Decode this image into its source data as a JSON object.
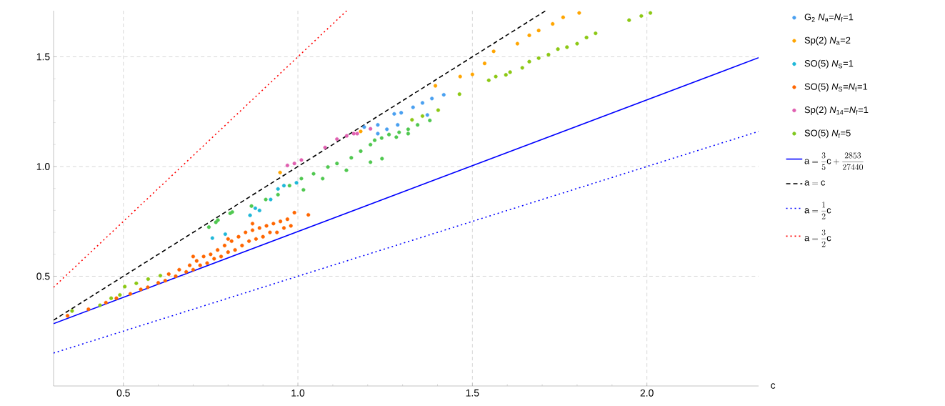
{
  "chart_data": {
    "type": "scatter",
    "xlabel": "c",
    "xlim": [
      0.3,
      2.32
    ],
    "ylim": [
      0,
      1.71
    ],
    "xticks": [
      0.5,
      {
        "value": 1,
        "label": "1.0"
      },
      1.5,
      {
        "value": 2,
        "label": "2.0"
      }
    ],
    "yticks": [
      0.5,
      {
        "value": 1,
        "label": "1.0"
      },
      1.5
    ],
    "grid": true,
    "legend": "right",
    "series": [
      {
        "name": "G$_{2}$ *N*$_{a}$=*N*$_{f}$=1",
        "marker": "circle",
        "color": "#4aa0f0",
        "x": [
          1.418,
          1.384,
          1.357,
          1.33,
          1.296,
          1.276,
          1.255,
          1.229,
          1.229,
          1.371,
          1.286,
          1.19
        ],
        "values": [
          1.327,
          1.31,
          1.29,
          1.27,
          1.245,
          1.24,
          1.17,
          1.19,
          1.15,
          1.235,
          1.19,
          1.18
        ]
      },
      {
        "name": "Sp(2) *N*$_{a}$=2",
        "marker": "circle",
        "color": "#ffa500",
        "x": [
          1.561,
          1.629,
          1.663,
          1.69,
          1.73,
          1.76,
          1.806,
          1.535,
          1.5,
          1.465,
          1.394,
          0.949,
          1.18
        ],
        "values": [
          1.525,
          1.56,
          1.598,
          1.62,
          1.65,
          1.68,
          1.7,
          1.47,
          1.42,
          1.41,
          1.368,
          0.973,
          1.16
        ]
      },
      {
        "name": "SO(5) *N*$_{S}$=1",
        "marker": "circle",
        "color": "#20b8d8",
        "x": [
          0.96,
          0.943,
          0.996,
          0.922,
          0.878,
          0.863,
          0.792,
          0.89,
          0.755
        ],
        "values": [
          0.913,
          0.898,
          0.926,
          0.85,
          0.81,
          0.778,
          0.692,
          0.8,
          0.674
        ]
      },
      {
        "name": "SO(5) *N*$_{S}$=*N*$_{f}$=1",
        "marker": "circle",
        "color": "#ff6600",
        "x": [
          0.34,
          0.4,
          0.45,
          0.48,
          0.52,
          0.55,
          0.57,
          0.6,
          0.62,
          0.63,
          0.65,
          0.66,
          0.68,
          0.69,
          0.7,
          0.71,
          0.72,
          0.73,
          0.74,
          0.75,
          0.76,
          0.77,
          0.78,
          0.79,
          0.8,
          0.81,
          0.82,
          0.83,
          0.84,
          0.85,
          0.86,
          0.87,
          0.88,
          0.89,
          0.9,
          0.91,
          0.92,
          0.93,
          0.94,
          0.95,
          0.96,
          0.97,
          0.98,
          0.99,
          1.03,
          0.87,
          0.8,
          0.7
        ],
        "values": [
          0.32,
          0.35,
          0.38,
          0.4,
          0.42,
          0.44,
          0.45,
          0.47,
          0.48,
          0.51,
          0.5,
          0.53,
          0.52,
          0.55,
          0.53,
          0.57,
          0.55,
          0.59,
          0.56,
          0.6,
          0.58,
          0.62,
          0.59,
          0.64,
          0.61,
          0.66,
          0.62,
          0.68,
          0.64,
          0.7,
          0.66,
          0.71,
          0.67,
          0.72,
          0.68,
          0.73,
          0.7,
          0.74,
          0.7,
          0.75,
          0.72,
          0.76,
          0.73,
          0.79,
          0.78,
          0.74,
          0.67,
          0.59
        ]
      },
      {
        "name": "Sp(2) *N*$_{14}$=*N*$_{f}$=1",
        "marker": "circle",
        "color": "#e060b0",
        "x": [
          1.208,
          1.17,
          1.16,
          1.14,
          1.112,
          1.078,
          1.01,
          0.99,
          0.97
        ],
        "values": [
          1.172,
          1.15,
          1.15,
          1.14,
          1.125,
          1.087,
          1.03,
          1.014,
          1.005
        ]
      },
      {
        "name": "SO(5) *N*$_{f}$=5",
        "marker": "circle",
        "color": "#80c820",
        "x": [
          1.378,
          1.343,
          1.316,
          1.29,
          1.261,
          1.24,
          1.22,
          1.208,
          1.316,
          1.282,
          1.18,
          1.153,
          1.112,
          1.086,
          1.045,
          1.01,
          0.976,
          0.943,
          0.908,
          0.867,
          0.806,
          0.771,
          0.745,
          1.241,
          1.208,
          1.139,
          1.071,
          1.016,
          0.812,
          0.765,
          0.504,
          0.49,
          0.537,
          0.571,
          0.606,
          0.353,
          0.433,
          0.465,
          1.357,
          1.327,
          1.402,
          1.463,
          1.547,
          1.567,
          1.596,
          1.608,
          1.643,
          1.663,
          1.69,
          1.718,
          1.745,
          1.771,
          1.8,
          1.827,
          1.853,
          1.949,
          1.984,
          2.01
        ],
        "values": [
          1.21,
          1.19,
          1.17,
          1.156,
          1.146,
          1.13,
          1.12,
          1.1,
          1.15,
          1.134,
          1.07,
          1.04,
          1.014,
          0.998,
          0.967,
          0.945,
          0.913,
          0.872,
          0.85,
          0.82,
          0.787,
          0.756,
          0.724,
          1.036,
          1.02,
          0.983,
          0.945,
          0.894,
          0.793,
          0.746,
          0.453,
          0.415,
          0.468,
          0.487,
          0.503,
          0.342,
          0.368,
          0.4,
          1.23,
          1.213,
          1.257,
          1.33,
          1.393,
          1.41,
          1.418,
          1.43,
          1.45,
          1.478,
          1.494,
          1.51,
          1.535,
          1.544,
          1.56,
          1.588,
          1.607,
          1.667,
          1.686,
          1.7
        ],
        "colors": [
          "#50c850",
          "#50c850",
          "#50c850",
          "#50c850",
          "#50c850",
          "#50c850",
          "#50c850",
          "#50c850",
          "#50c850",
          "#50c850",
          "#50c850",
          "#50c850",
          "#50c850",
          "#50c850",
          "#50c850",
          "#50c850",
          "#50c850",
          "#50c850",
          "#50c850",
          "#50c850",
          "#50c850",
          "#50c850",
          "#50c850",
          "#50c850",
          "#50c850",
          "#50c850",
          "#50c850",
          "#50c850",
          "#50c850",
          "#50c850",
          "#8cc814",
          "#8cc814",
          "#8cc814",
          "#8cc814",
          "#8cc814",
          "#8cc814",
          "#8cc814",
          "#8cc814",
          "#8cc814",
          "#8cc814",
          "#8cc814",
          "#8cc814",
          "#8cc814",
          "#8cc814",
          "#8cc814",
          "#8cc814",
          "#8cc814",
          "#8cc814",
          "#8cc814",
          "#8cc814",
          "#8cc814",
          "#8cc814",
          "#8cc814",
          "#8cc814",
          "#8cc814",
          "#8cc814",
          "#8cc814",
          "#8cc814"
        ]
      },
      {
        "name": "\\mathrm{a}=\\frac{3}{5}\\mathrm{c}+\\frac{2853}{27440}",
        "type": "line",
        "marker": "none",
        "line_style": "solid",
        "color": "#0000ff",
        "x": [
          0.3,
          2.32
        ],
        "values": [
          0.284,
          1.496
        ]
      },
      {
        "name": "\\mathrm{a}=\\mathrm{c}",
        "type": "line",
        "marker": "none",
        "line_style": "dashed",
        "color": "#000000",
        "x": [
          0.3,
          1.71
        ],
        "values": [
          0.3,
          1.71
        ]
      },
      {
        "name": "\\mathrm{a}=\\frac{1}{2}\\mathrm{c}",
        "type": "line",
        "marker": "none",
        "line_style": "dotted",
        "color": "#0000ff",
        "x": [
          0.3,
          2.32
        ],
        "values": [
          0.15,
          1.16
        ]
      },
      {
        "name": "\\mathrm{a}=\\frac{3}{2}\\mathrm{c}",
        "type": "line",
        "marker": "none",
        "line_style": "dotted",
        "color": "#ff0000",
        "x": [
          0.3,
          1.14
        ],
        "values": [
          0.45,
          1.71
        ]
      }
    ]
  }
}
